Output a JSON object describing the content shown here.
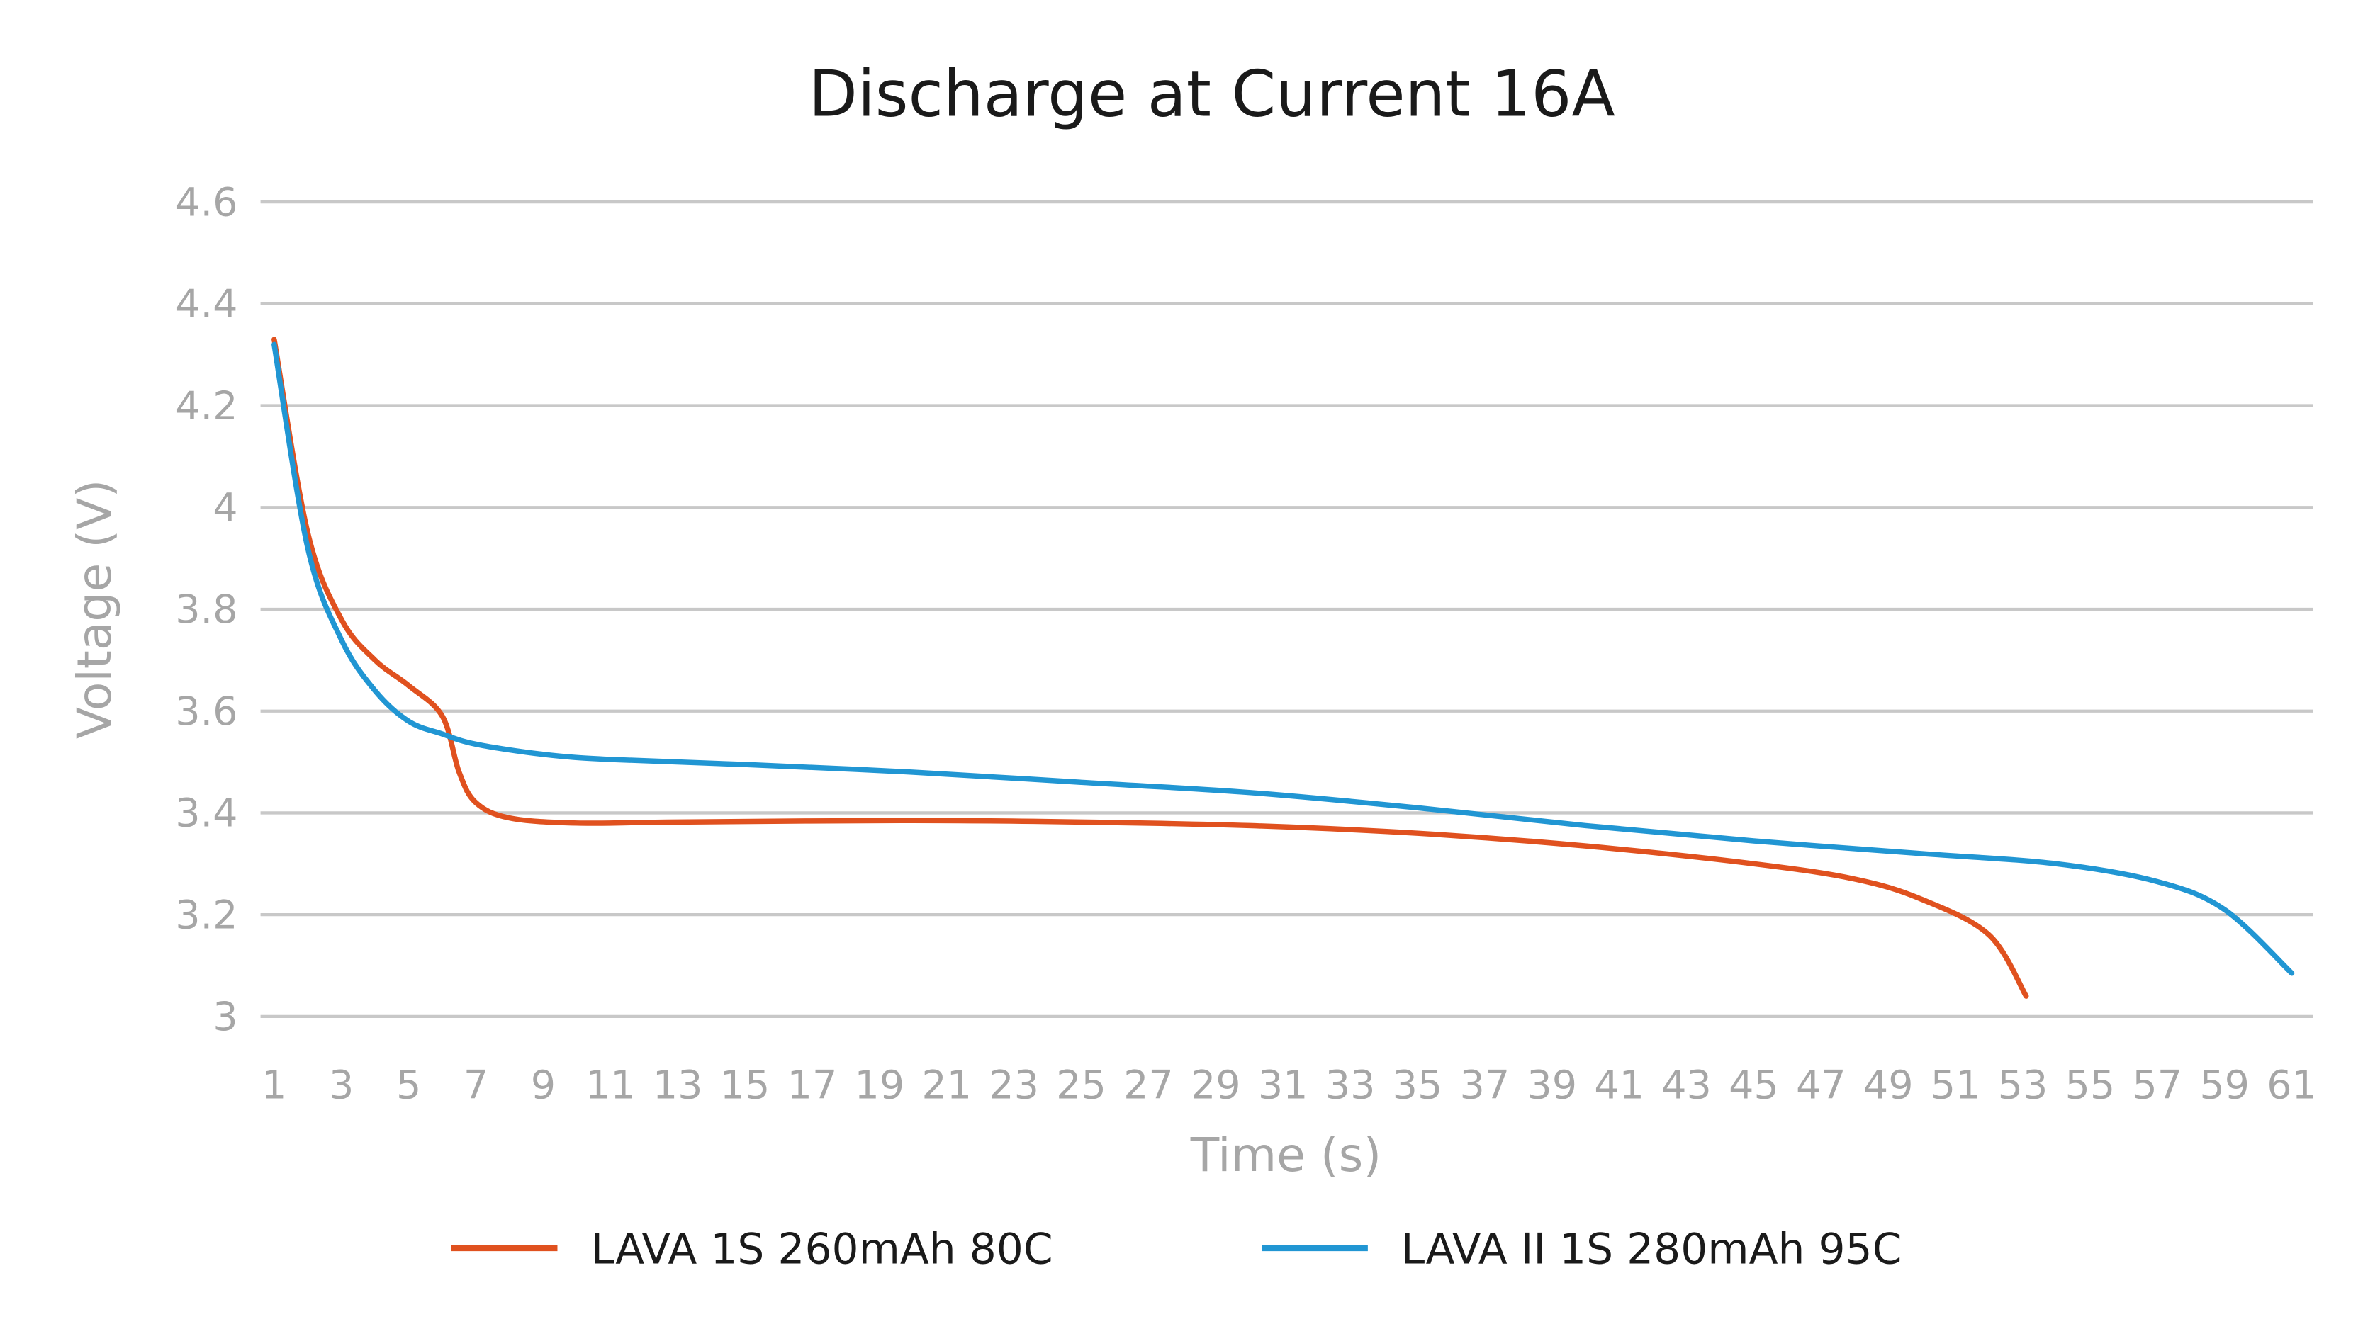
{
  "chart_data": {
    "type": "line",
    "title": "Discharge at Current 16A",
    "xlabel": "Time (s)",
    "ylabel": "Voltage (V)",
    "xlim": [
      1,
      61
    ],
    "ylim": [
      3,
      4.6
    ],
    "x_ticks": [
      "1",
      "3",
      "5",
      "7",
      "9",
      "11",
      "13",
      "15",
      "17",
      "19",
      "21",
      "23",
      "25",
      "27",
      "29",
      "31",
      "33",
      "35",
      "37",
      "39",
      "41",
      "43",
      "45",
      "47",
      "49",
      "51",
      "53",
      "55",
      "57",
      "59",
      "61"
    ],
    "y_ticks": [
      "3",
      "3.2",
      "3.4",
      "3.6",
      "3.8",
      "4",
      "4.2",
      "4.4",
      "4.6"
    ],
    "grid": "horizontal",
    "legend_position": "bottom",
    "series": [
      {
        "name": "LAVA 1S 260mAh 80C",
        "color": "#e0511f",
        "x": [
          1,
          2,
          3,
          4,
          5,
          6,
          6.5,
          7,
          8,
          10,
          13,
          20,
          25,
          30,
          35,
          40,
          45,
          48,
          50,
          52,
          53.1
        ],
        "y": [
          4.33,
          3.95,
          3.78,
          3.7,
          3.65,
          3.59,
          3.48,
          3.42,
          3.39,
          3.38,
          3.382,
          3.385,
          3.382,
          3.375,
          3.36,
          3.335,
          3.3,
          3.27,
          3.23,
          3.16,
          3.04
        ]
      },
      {
        "name": "LAVA II 1S 280mAh 95C",
        "color": "#2196d3",
        "x": [
          1,
          2,
          3,
          4,
          5,
          6,
          7,
          9,
          11,
          15,
          20,
          25,
          30,
          35,
          40,
          45,
          50,
          54,
          57,
          59,
          61
        ],
        "y": [
          4.32,
          3.92,
          3.74,
          3.64,
          3.58,
          3.555,
          3.535,
          3.515,
          3.505,
          3.495,
          3.48,
          3.46,
          3.44,
          3.41,
          3.375,
          3.345,
          3.32,
          3.3,
          3.265,
          3.21,
          3.085
        ]
      }
    ]
  }
}
